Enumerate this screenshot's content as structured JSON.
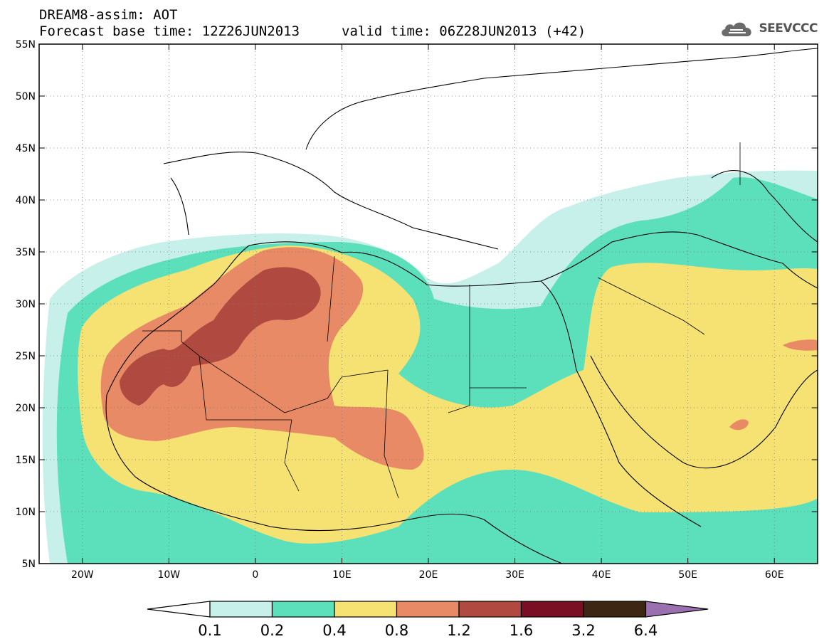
{
  "header": {
    "line1": "DREAM8-assim: AOT",
    "line2": "Forecast base time: 12Z26JUN2013",
    "valid": "valid time: 06Z28JUN2013 (+42)",
    "logo_text": "SEEVCCC",
    "logo_icon": "cloud-icon"
  },
  "map": {
    "lat_labels": [
      "55N",
      "50N",
      "45N",
      "40N",
      "35N",
      "30N",
      "25N",
      "20N",
      "15N",
      "10N",
      "5N"
    ],
    "lat_values": [
      55,
      50,
      45,
      40,
      35,
      30,
      25,
      20,
      15,
      10,
      5
    ],
    "lon_labels": [
      "20W",
      "10W",
      "0",
      "10E",
      "20E",
      "30E",
      "40E",
      "50E",
      "60E"
    ],
    "lon_values": [
      -20,
      -10,
      0,
      10,
      20,
      30,
      40,
      50,
      60
    ],
    "lon_range": [
      -25,
      65
    ],
    "lat_range": [
      5,
      55
    ],
    "grid": "dotted"
  },
  "colorbar": {
    "labels": [
      "0.1",
      "0.2",
      "0.4",
      "0.8",
      "1.2",
      "1.6",
      "3.2",
      "6.4"
    ],
    "colors": [
      "#ffffff",
      "#c8f0ea",
      "#5ce0bc",
      "#f5e273",
      "#e88a66",
      "#b04a40",
      "#7a0e22",
      "#3e2614",
      "#9b70b0"
    ]
  }
}
